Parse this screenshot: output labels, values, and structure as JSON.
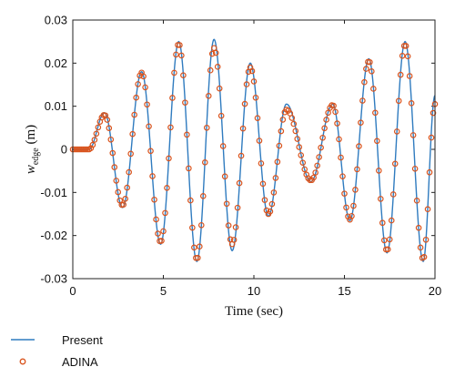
{
  "chart_data": {
    "type": "line",
    "xlabel": "Time (sec)",
    "ylabel_main": "w",
    "ylabel_sub": "edge",
    "ylabel_unit": " (m)",
    "xlim": [
      0,
      20
    ],
    "ylim": [
      -0.03,
      0.03
    ],
    "xticks": [
      0,
      5,
      10,
      15,
      20
    ],
    "xtick_labels": [
      "0",
      "5",
      "10",
      "15",
      "20"
    ],
    "yticks": [
      -0.03,
      -0.02,
      -0.01,
      0,
      0.01,
      0.02,
      0.03
    ],
    "ytick_labels": [
      "-0.03",
      "-0.02",
      "-0.01",
      "0",
      "0.01",
      "0.02",
      "0.03"
    ],
    "grid": false,
    "legend_placement": "below",
    "series": [
      {
        "name": "Present",
        "style": "line",
        "color": "#2f7bbf",
        "extrema": [
          [
            0.0,
            0.0
          ],
          [
            0.9,
            0.0
          ],
          [
            1.75,
            0.0085
          ],
          [
            2.75,
            -0.0135
          ],
          [
            3.8,
            0.018
          ],
          [
            4.85,
            -0.022
          ],
          [
            5.85,
            0.025
          ],
          [
            6.85,
            -0.026
          ],
          [
            7.8,
            0.0255
          ],
          [
            8.8,
            -0.0235
          ],
          [
            9.8,
            0.02
          ],
          [
            10.8,
            -0.0155
          ],
          [
            11.8,
            0.0105
          ],
          [
            13.15,
            -0.0075
          ],
          [
            14.35,
            0.0105
          ],
          [
            15.3,
            -0.0165
          ],
          [
            16.35,
            0.021
          ],
          [
            17.35,
            -0.024
          ],
          [
            18.35,
            0.025
          ],
          [
            19.35,
            -0.026
          ],
          [
            20.0,
            0.0125
          ]
        ]
      },
      {
        "name": "ADINA",
        "style": "markers",
        "marker": "circle-open",
        "color": "#d9541e",
        "marker_spacing": 0.1,
        "extrema": [
          [
            0.0,
            0.0
          ],
          [
            0.9,
            0.0
          ],
          [
            1.75,
            0.008
          ],
          [
            2.75,
            -0.013
          ],
          [
            3.8,
            0.0178
          ],
          [
            4.85,
            -0.0215
          ],
          [
            5.85,
            0.0245
          ],
          [
            6.85,
            -0.0255
          ],
          [
            7.8,
            0.0235
          ],
          [
            8.8,
            -0.022
          ],
          [
            9.8,
            0.019
          ],
          [
            10.8,
            -0.015
          ],
          [
            11.8,
            0.0092
          ],
          [
            13.15,
            -0.0072
          ],
          [
            14.35,
            0.0103
          ],
          [
            15.3,
            -0.0163
          ],
          [
            16.35,
            0.0205
          ],
          [
            17.35,
            -0.0235
          ],
          [
            18.35,
            0.0243
          ],
          [
            19.35,
            -0.0255
          ],
          [
            20.0,
            0.0105
          ]
        ]
      }
    ]
  }
}
